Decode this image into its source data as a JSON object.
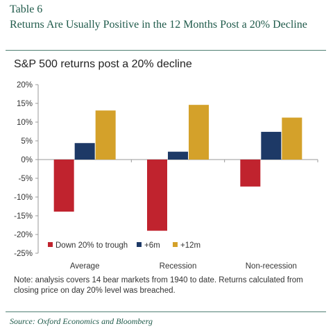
{
  "header": {
    "table_label": "Table 6",
    "table_title": "Returns Are Usually Positive in the 12 Months Post a 20% Decline"
  },
  "footer": {
    "note": "Note: analysis covers 14 bear markets from 1940 to date. Returns calculated from closing price on day 20% level was breached.",
    "source": "Source:  Oxford Economics and Bloomberg"
  },
  "chart_data": {
    "type": "bar",
    "title": "S&P 500 returns post a 20% decline",
    "xlabel": "",
    "ylabel": "",
    "ylim": [
      -25,
      20
    ],
    "yticks": [
      20,
      15,
      10,
      5,
      0,
      -5,
      -10,
      -15,
      -20,
      -25
    ],
    "ytick_labels": [
      "20%",
      "15%",
      "10%",
      "5%",
      "0%",
      "-5%",
      "-10%",
      "-15%",
      "-20%",
      "-25%"
    ],
    "categories": [
      "Average",
      "Recession",
      "Non-recession"
    ],
    "series": [
      {
        "name": "Down 20% to trough",
        "color": "#c0232e",
        "values": [
          -13.9,
          -19.0,
          -7.2
        ]
      },
      {
        "name": "+6m",
        "color": "#1d3966",
        "values": [
          4.4,
          2.1,
          7.4
        ]
      },
      {
        "name": "+12m",
        "color": "#d4a12a",
        "values": [
          13.1,
          14.6,
          11.2
        ]
      }
    ],
    "grid": false,
    "legend_position": "bottom-left inside plot"
  }
}
